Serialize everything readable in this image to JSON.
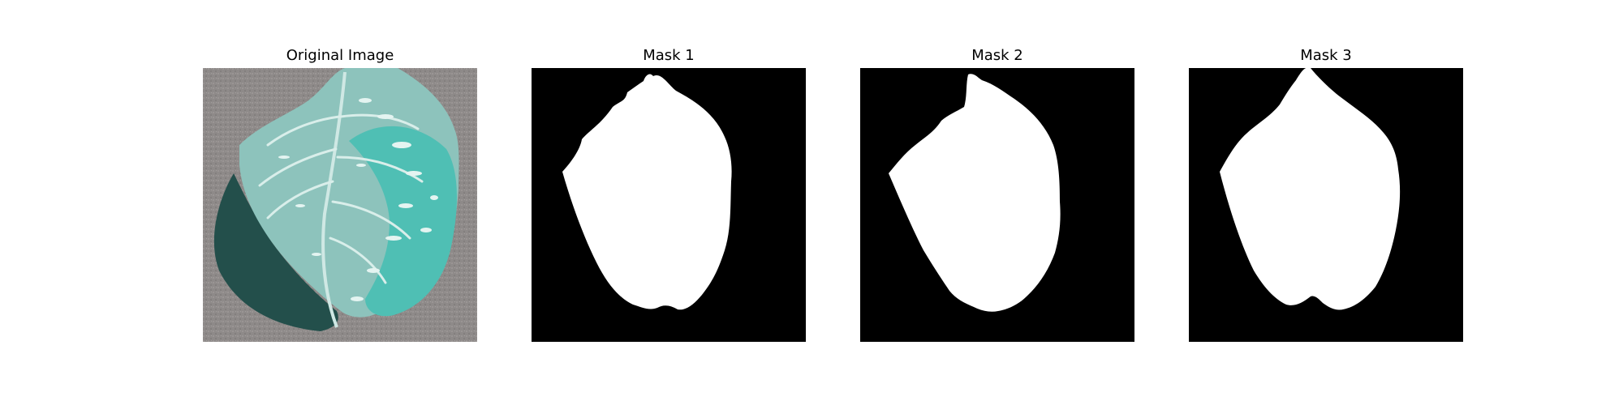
{
  "figure": {
    "panels": [
      {
        "title": "Original Image",
        "kind": "photo"
      },
      {
        "title": "Mask 1",
        "kind": "mask"
      },
      {
        "title": "Mask 2",
        "kind": "mask"
      },
      {
        "title": "Mask 3",
        "kind": "mask"
      }
    ]
  },
  "colors": {
    "background": "#ffffff",
    "mask_bg": "#000000",
    "mask_fg": "#ffffff",
    "photo_bg": "#8e8a89",
    "leaf_light": "#8dc3bc",
    "leaf_shadow": "#234f4b",
    "leaf_vein": "#d9eeea",
    "leaf_accent": "#2fb7ad"
  }
}
